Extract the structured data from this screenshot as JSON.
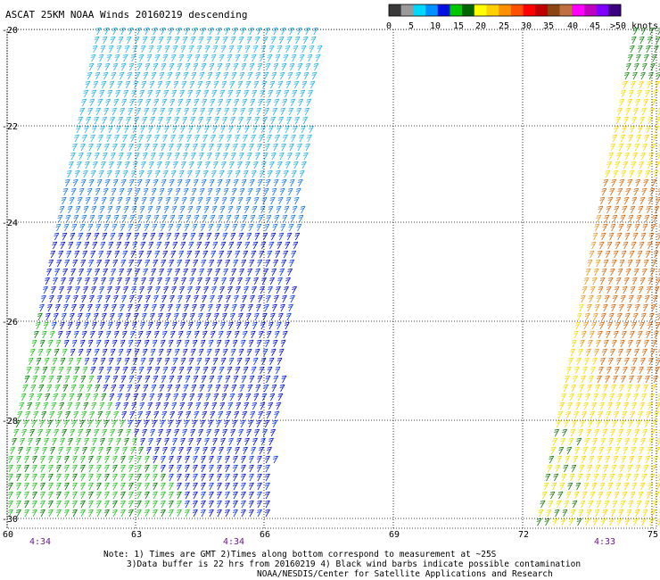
{
  "title": "ASCAT 25KM NOAA Winds 20160219 descending",
  "legend": {
    "ticks": [
      "0",
      "5",
      "10",
      "15",
      "20",
      "25",
      "30",
      "35",
      "40",
      "45",
      ">50 knots"
    ],
    "colors": [
      "#3a3a3a",
      "#9a9a9a",
      "#00d8ff",
      "#0090ff",
      "#0010e0",
      "#00c800",
      "#006400",
      "#ffff00",
      "#ffd000",
      "#ff9000",
      "#ff5000",
      "#ff0000",
      "#c00000",
      "#8b4513",
      "#c07040",
      "#ff00ff",
      "#c000c0",
      "#8000ff",
      "#3a0080"
    ]
  },
  "axes": {
    "lat_labels": [
      "-20",
      "-22",
      "-24",
      "-26",
      "-28",
      "-30"
    ],
    "lon_labels": [
      "60",
      "63",
      "66",
      "69",
      "72",
      "75"
    ]
  },
  "pass_times": [
    "4:34",
    "4:34",
    "4:33"
  ],
  "notes": {
    "line1": "Note: 1) Times are GMT 2)Times along bottom correspond to measurement at ~25S",
    "line2": "3)Data buffer is 22 hrs from 20160219 4) Black wind barbs indicate possible contamination",
    "line3": "NOAA/NESDIS/Center for Satellite Applications and Research"
  }
}
